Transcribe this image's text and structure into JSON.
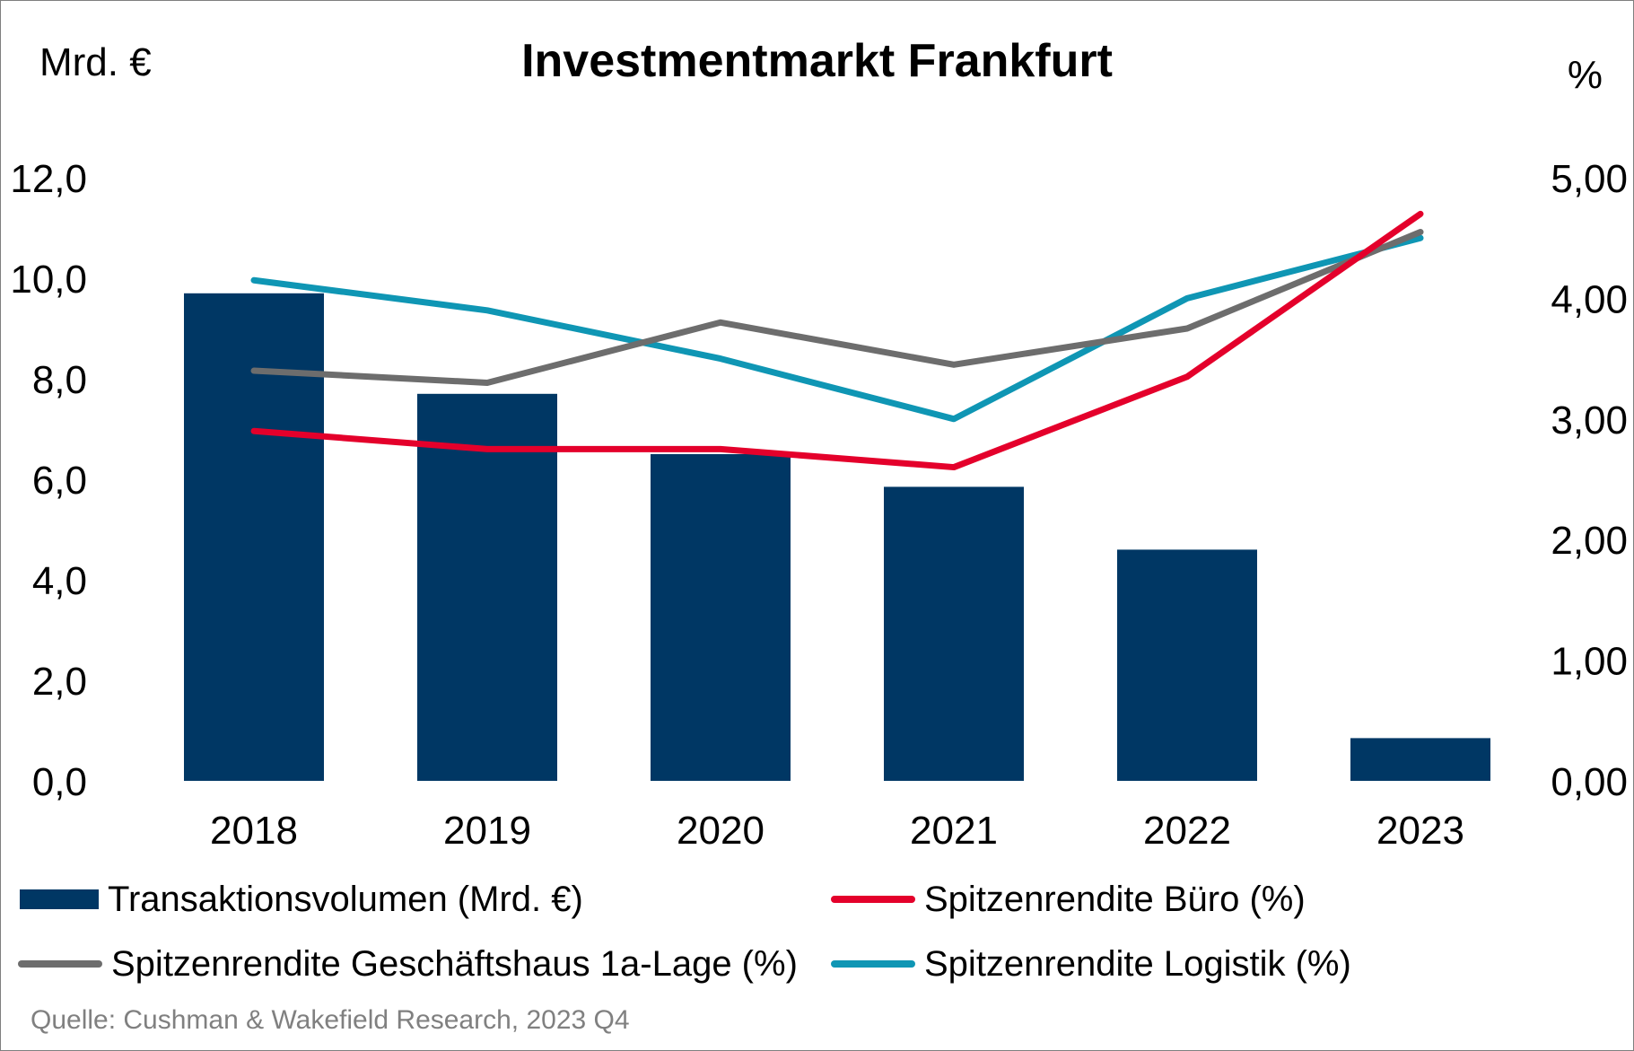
{
  "chart_data": {
    "type": "bar",
    "title": "Investmentmarkt Frankfurt",
    "ylabel_left": "Mrd. €",
    "ylabel_right": "%",
    "categories": [
      "2018",
      "2019",
      "2020",
      "2021",
      "2022",
      "2023"
    ],
    "y_left": {
      "lim": [
        0,
        12
      ],
      "ticks": [
        "0,0",
        "2,0",
        "4,0",
        "6,0",
        "8,0",
        "10,0",
        "12,0"
      ]
    },
    "y_right": {
      "lim": [
        0,
        5
      ],
      "ticks": [
        "0,00",
        "1,00",
        "2,00",
        "3,00",
        "4,00",
        "5,00"
      ]
    },
    "bar_series": {
      "name": "Transaktionsvolumen (Mrd. €)",
      "color": "#003764",
      "values": [
        9.7,
        7.7,
        6.5,
        5.85,
        4.6,
        0.85
      ]
    },
    "line_series": [
      {
        "name": "Spitzenrendite Büro (%)",
        "color": "#e4002b",
        "values": [
          2.9,
          2.75,
          2.75,
          2.6,
          3.35,
          4.7
        ]
      },
      {
        "name": "Spitzenrendite Geschäftshaus 1a-Lage (%)",
        "color": "#6d6d6d",
        "values": [
          3.4,
          3.3,
          3.8,
          3.45,
          3.75,
          4.55
        ]
      },
      {
        "name": "Spitzenrendite Logistik (%)",
        "color": "#0f96b4",
        "values": [
          4.15,
          3.9,
          3.5,
          3.0,
          4.0,
          4.5
        ]
      }
    ],
    "legend": "bottom",
    "grid": false
  },
  "source": "Quelle: Cushman & Wakefield Research, 2023 Q4"
}
